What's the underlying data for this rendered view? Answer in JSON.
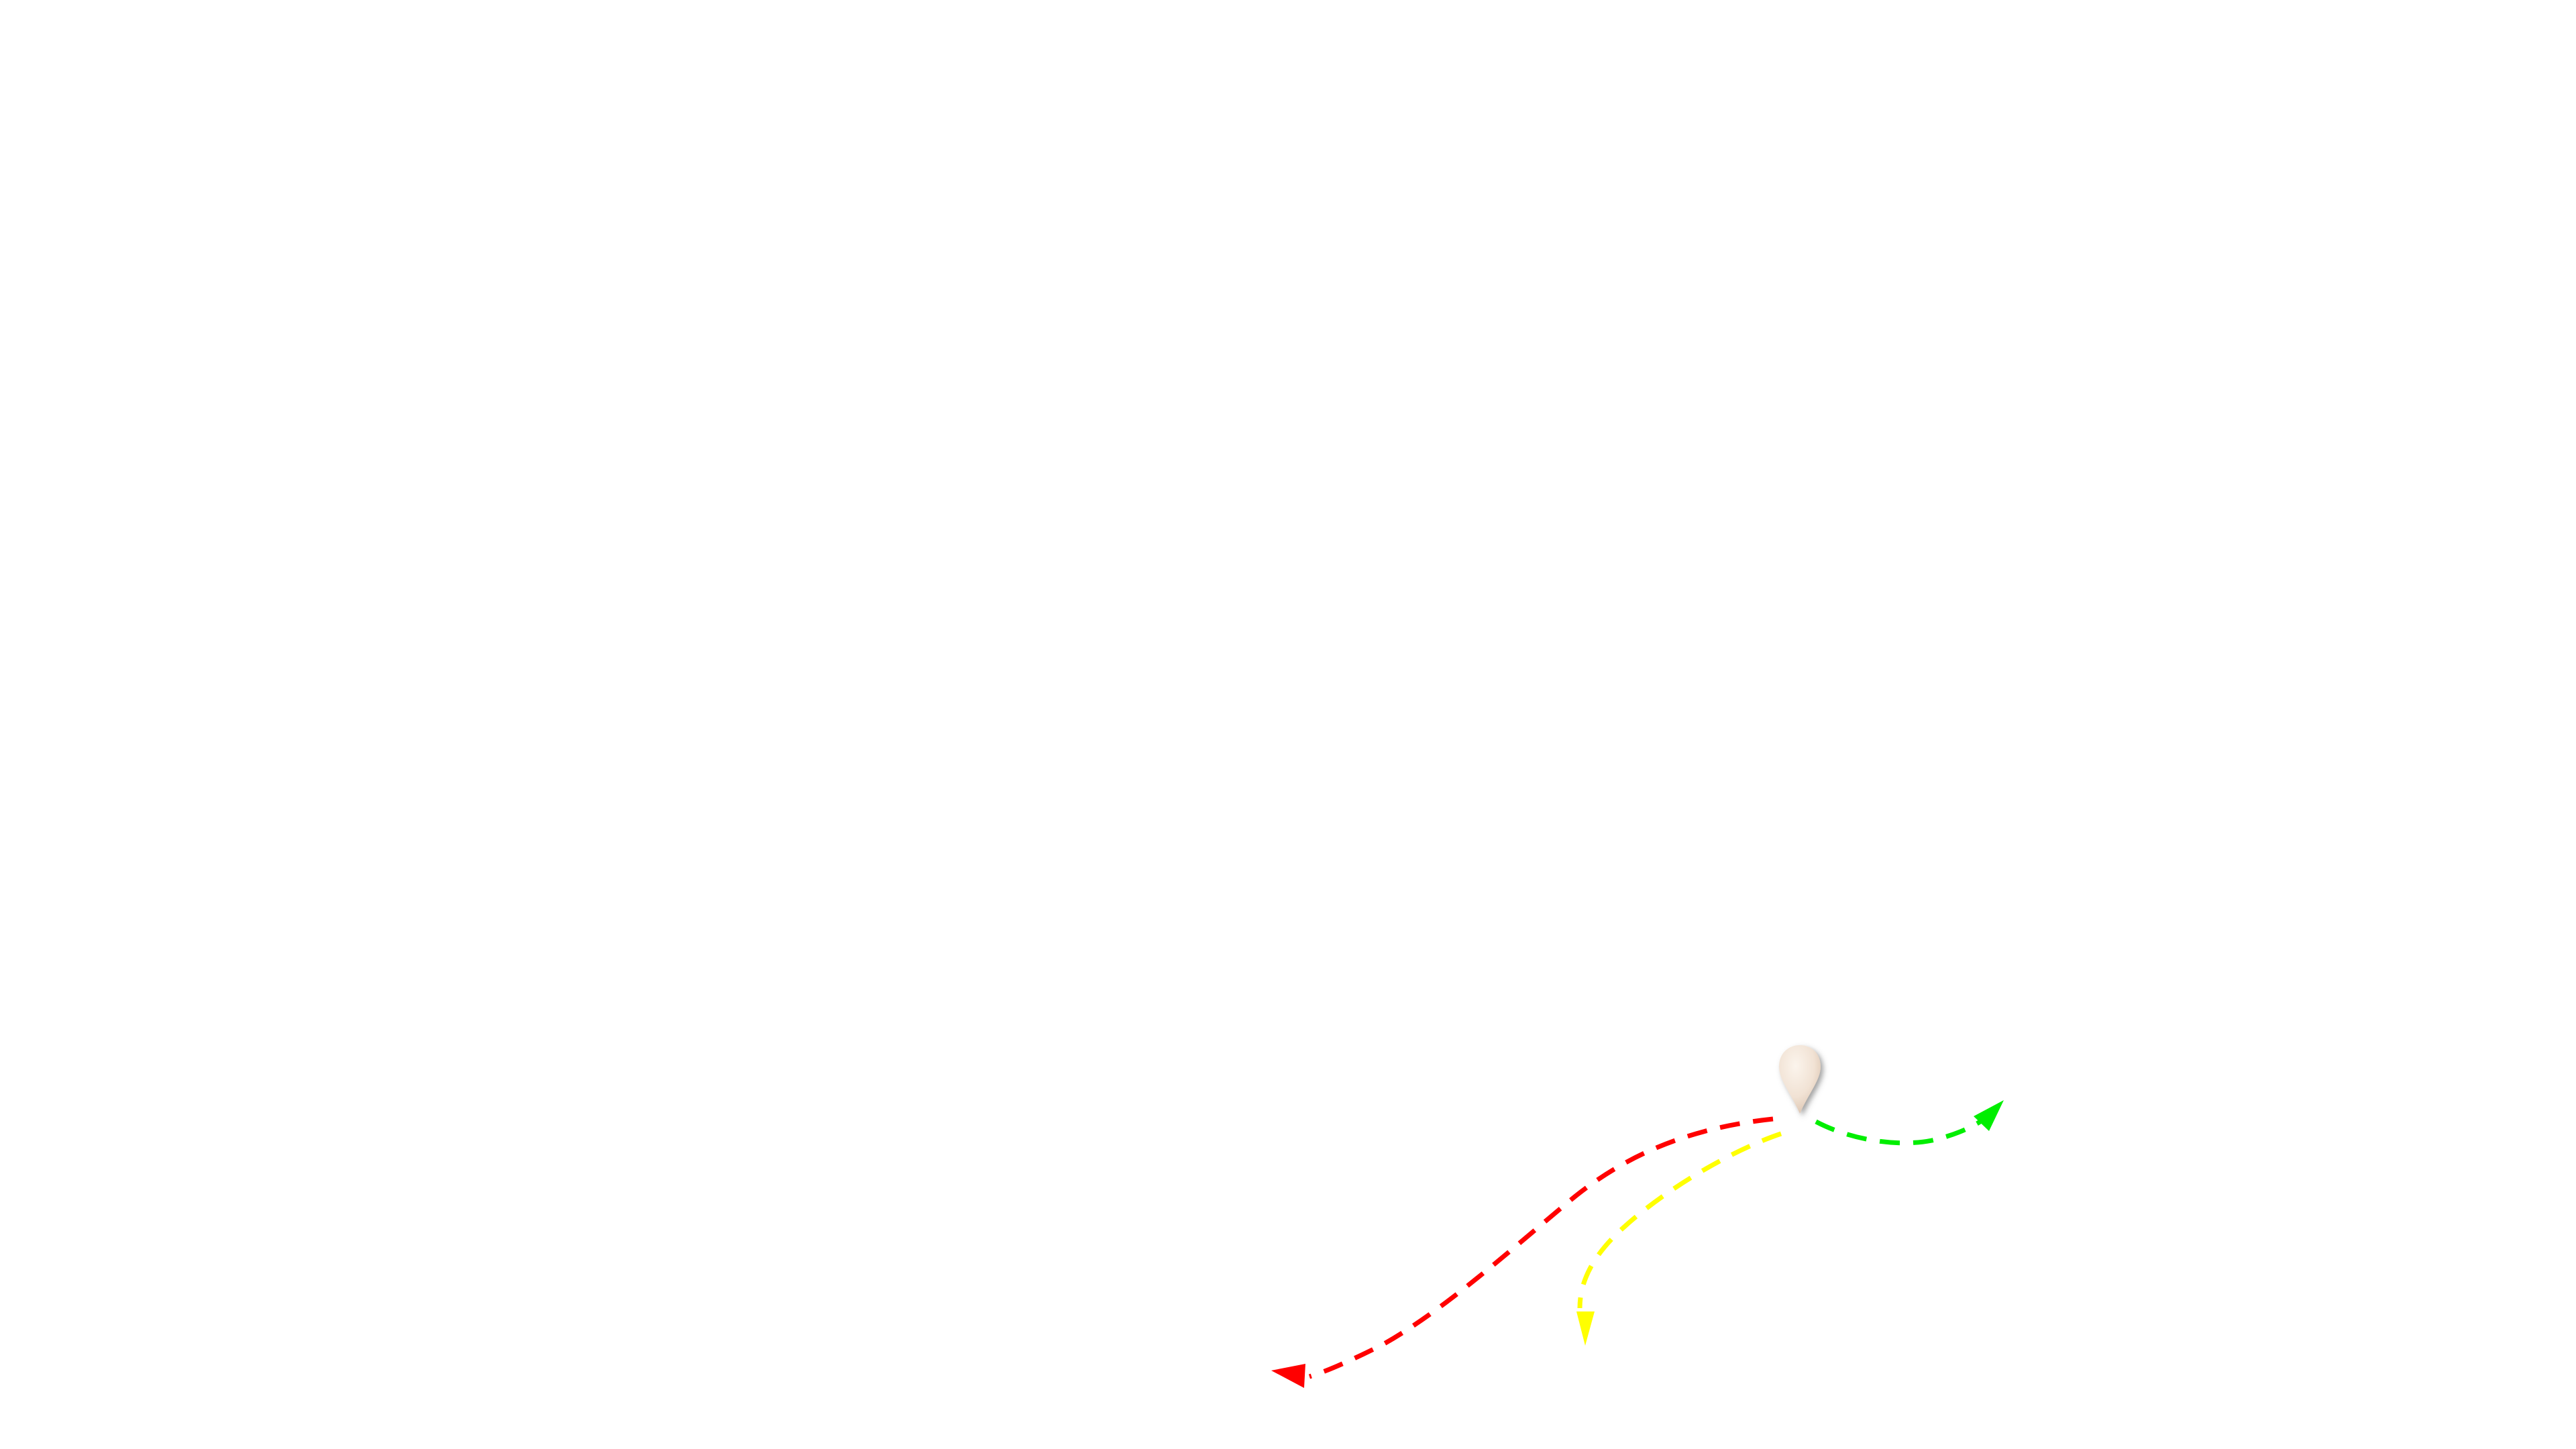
{
  "map": {
    "background_color": "#ffffff",
    "marker": {
      "icon": "map-pin-icon",
      "fill_color": "#f1e2d4",
      "shadow_color": "#6f6f6f"
    },
    "routes": [
      {
        "id": "route-red",
        "color": "#ff0000",
        "direction": "west-southwest"
      },
      {
        "id": "route-yellow",
        "color": "#ffff00",
        "direction": "southwest"
      },
      {
        "id": "route-green",
        "color": "#00ee00",
        "direction": "east"
      }
    ]
  }
}
